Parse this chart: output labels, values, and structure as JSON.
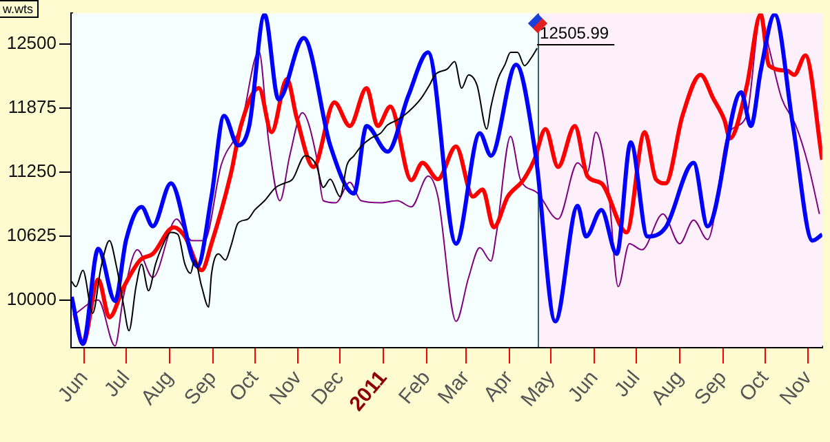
{
  "chart_data": {
    "type": "line",
    "xlim": [
      "2010-05-23",
      "2011-11-11"
    ],
    "ylim": [
      9540,
      12800
    ],
    "yticks": [
      10000,
      10625,
      11250,
      11875,
      12500
    ],
    "xticks": [
      {
        "value": "2010-06-01",
        "label": "Jun"
      },
      {
        "value": "2010-07-01",
        "label": "Jul"
      },
      {
        "value": "2010-08-01",
        "label": "Aug"
      },
      {
        "value": "2010-09-01",
        "label": "Sep"
      },
      {
        "value": "2010-10-01",
        "label": "Oct"
      },
      {
        "value": "2010-11-01",
        "label": "Nov"
      },
      {
        "value": "2010-12-01",
        "label": "Dec"
      },
      {
        "value": "2011-01-01",
        "label": "2011"
      },
      {
        "value": "2011-02-01",
        "label": "Feb"
      },
      {
        "value": "2011-03-01",
        "label": "Mar"
      },
      {
        "value": "2011-04-01",
        "label": "Apr"
      },
      {
        "value": "2011-05-01",
        "label": "May"
      },
      {
        "value": "2011-06-01",
        "label": "Jun"
      },
      {
        "value": "2011-07-01",
        "label": "Jul"
      },
      {
        "value": "2011-08-01",
        "label": "Aug"
      },
      {
        "value": "2011-09-01",
        "label": "Sep"
      },
      {
        "value": "2011-10-01",
        "label": "Oct"
      },
      {
        "value": "2011-11-01",
        "label": "Nov"
      }
    ],
    "grid": false,
    "legend": false,
    "marker": "none",
    "line_style": "solid",
    "bands": [
      {
        "axis": "x",
        "from": "2010-05-23",
        "to": "2011-04-21",
        "color": "#f5ffff"
      },
      {
        "axis": "x",
        "from": "2011-04-21",
        "to": "2011-11-11",
        "color": "#fdf0fb"
      }
    ],
    "ref_lines": [
      {
        "axis": "x",
        "value": "2011-04-21",
        "color": "#336666"
      }
    ],
    "annotations": [
      "w.wts",
      {
        "text": "12505.99",
        "x": "2011-04-21",
        "y": 12505.99
      }
    ],
    "series": [
      {
        "color": "#000000",
        "x": [
          "2010-05-23",
          "2010-05-26",
          "2010-05-31",
          "2010-06-07",
          "2010-06-13",
          "2010-06-19",
          "2010-06-24",
          "2010-06-29",
          "2010-07-03",
          "2010-07-08",
          "2010-07-12",
          "2010-07-17",
          "2010-07-22",
          "2010-07-27",
          "2010-08-02",
          "2010-08-07",
          "2010-08-12",
          "2010-08-16",
          "2010-08-19",
          "2010-08-24",
          "2010-08-29",
          "2010-08-31",
          "2010-09-05",
          "2010-09-10",
          "2010-09-14",
          "2010-09-19",
          "2010-09-26",
          "2010-10-01",
          "2010-10-08",
          "2010-10-16",
          "2010-10-22",
          "2010-10-28",
          "2010-11-06",
          "2010-11-14",
          "2010-11-19",
          "2010-11-24",
          "2010-12-01",
          "2010-12-06",
          "2010-12-11",
          "2010-12-16",
          "2010-12-23",
          "2010-12-30",
          "2011-01-04",
          "2011-01-11",
          "2011-01-19",
          "2011-01-28",
          "2011-02-03",
          "2011-02-07",
          "2011-02-16",
          "2011-02-21",
          "2011-02-26",
          "2011-03-03",
          "2011-03-09",
          "2011-03-16",
          "2011-03-19",
          "2011-03-24",
          "2011-03-29",
          "2011-04-02",
          "2011-04-07",
          "2011-04-12",
          "2011-04-17",
          "2011-04-21"
        ],
        "values": [
          10180,
          10130,
          10290,
          9870,
          10320,
          10580,
          10330,
          9960,
          9700,
          10130,
          10350,
          10090,
          10350,
          10530,
          10660,
          10640,
          10350,
          10260,
          10390,
          10130,
          9930,
          10250,
          10450,
          10390,
          10530,
          10750,
          10790,
          10880,
          10970,
          11100,
          11140,
          11180,
          11410,
          11320,
          11100,
          11180,
          11010,
          11320,
          11410,
          11500,
          11580,
          11630,
          11710,
          11760,
          11840,
          11970,
          12100,
          12200,
          12260,
          12330,
          12070,
          12200,
          12100,
          11670,
          11890,
          12160,
          12300,
          12420,
          12420,
          12290,
          12370,
          12460
        ]
      },
      {
        "color": "#0000ff",
        "x": [
          "2010-05-23",
          "2010-05-31",
          "2010-06-11",
          "2010-06-23",
          "2010-07-01",
          "2010-07-12",
          "2010-07-20",
          "2010-08-02",
          "2010-08-21",
          "2010-08-31",
          "2010-09-09",
          "2010-09-19",
          "2010-09-27",
          "2010-10-08",
          "2010-10-18",
          "2010-11-05",
          "2010-11-24",
          "2010-12-11",
          "2010-12-20",
          "2011-01-04",
          "2011-01-19",
          "2011-02-02",
          "2011-02-22",
          "2011-03-11",
          "2011-03-19",
          "2011-04-06",
          "2011-04-20",
          "2011-05-04",
          "2011-05-20",
          "2011-05-26",
          "2011-06-06",
          "2011-06-17",
          "2011-06-27",
          "2011-07-09",
          "2011-07-22",
          "2011-08-11",
          "2011-08-21",
          "2011-09-14",
          "2011-09-21",
          "2011-09-28",
          "2011-10-08",
          "2011-10-21",
          "2011-11-04",
          "2011-11-11"
        ],
        "values": [
          10030,
          9570,
          10500,
          9990,
          10590,
          10910,
          10720,
          11140,
          10330,
          11010,
          11800,
          11510,
          11700,
          12790,
          11960,
          12560,
          11510,
          11040,
          11700,
          11450,
          12000,
          12420,
          10550,
          11630,
          11410,
          12300,
          11410,
          9790,
          10920,
          10620,
          10880,
          10450,
          11540,
          10620,
          10710,
          11340,
          10720,
          12030,
          11700,
          12240,
          12790,
          11710,
          10580,
          10640
        ]
      },
      {
        "color": "#ff0000",
        "x": [
          "2010-05-25",
          "2010-05-31",
          "2010-06-11",
          "2010-06-19",
          "2010-06-29",
          "2010-07-11",
          "2010-07-20",
          "2010-08-04",
          "2010-08-12",
          "2010-08-24",
          "2010-08-31",
          "2010-09-14",
          "2010-09-21",
          "2010-10-04",
          "2010-10-13",
          "2010-10-24",
          "2010-10-31",
          "2010-11-12",
          "2010-11-27",
          "2010-12-08",
          "2010-12-20",
          "2010-12-28",
          "2011-01-06",
          "2011-01-21",
          "2011-01-29",
          "2011-02-09",
          "2011-02-22",
          "2011-03-06",
          "2011-03-13",
          "2011-03-21",
          "2011-03-31",
          "2011-04-11",
          "2011-04-19",
          "2011-04-27",
          "2011-05-06",
          "2011-05-18",
          "2011-05-27",
          "2011-06-06",
          "2011-06-24",
          "2011-07-07",
          "2011-07-15",
          "2011-07-22",
          "2011-08-03",
          "2011-08-16",
          "2011-08-25",
          "2011-09-02",
          "2011-09-06",
          "2011-09-18",
          "2011-09-28",
          "2011-10-04",
          "2011-10-17",
          "2011-10-22",
          "2011-10-30",
          "2011-11-11"
        ],
        "values": [
          9870,
          9570,
          10200,
          9830,
          10120,
          10390,
          10450,
          10710,
          10620,
          10290,
          10550,
          11240,
          11700,
          12070,
          11640,
          12160,
          11780,
          11300,
          11930,
          11700,
          12070,
          11700,
          11890,
          11170,
          11340,
          11180,
          11500,
          11010,
          11080,
          10710,
          11010,
          11170,
          11370,
          11670,
          11300,
          11700,
          11210,
          11140,
          10660,
          11640,
          11180,
          11140,
          11800,
          12200,
          11970,
          11760,
          11580,
          12090,
          12790,
          12290,
          12240,
          12200,
          12390,
          11370
        ]
      },
      {
        "color": "#800080",
        "x": [
          "2010-05-25",
          "2010-06-11",
          "2010-06-23",
          "2010-06-29",
          "2010-07-09",
          "2010-07-20",
          "2010-08-06",
          "2010-08-17",
          "2010-08-26",
          "2010-09-07",
          "2010-09-21",
          "2010-10-04",
          "2010-10-11",
          "2010-10-19",
          "2010-10-26",
          "2010-11-04",
          "2010-11-14",
          "2010-11-19",
          "2010-11-28",
          "2010-12-08",
          "2010-12-16",
          "2010-12-30",
          "2011-01-11",
          "2011-01-21",
          "2011-02-02",
          "2011-02-09",
          "2011-02-22",
          "2011-03-03",
          "2011-03-11",
          "2011-03-19",
          "2011-03-23",
          "2011-04-02",
          "2011-04-09",
          "2011-04-21",
          "2011-05-06",
          "2011-05-20",
          "2011-05-27",
          "2011-06-02",
          "2011-06-11",
          "2011-06-18",
          "2011-06-26",
          "2011-07-05",
          "2011-07-20",
          "2011-08-01",
          "2011-08-11",
          "2011-08-21",
          "2011-09-05",
          "2011-09-18",
          "2011-09-28",
          "2011-10-04",
          "2011-10-13",
          "2011-10-23",
          "2011-11-01",
          "2011-11-09"
        ],
        "values": [
          9860,
          10000,
          9550,
          10030,
          10490,
          10220,
          10790,
          10580,
          10580,
          11320,
          11700,
          12430,
          11540,
          10970,
          11410,
          11830,
          11410,
          10970,
          10950,
          11150,
          10970,
          10950,
          10970,
          10910,
          11210,
          11010,
          9790,
          10220,
          10510,
          10380,
          10660,
          11600,
          11180,
          11050,
          10790,
          11340,
          11250,
          11640,
          11080,
          10130,
          10550,
          10490,
          10840,
          10550,
          10780,
          10590,
          11630,
          11800,
          12780,
          12460,
          11970,
          11710,
          11320,
          10840
        ]
      }
    ]
  }
}
